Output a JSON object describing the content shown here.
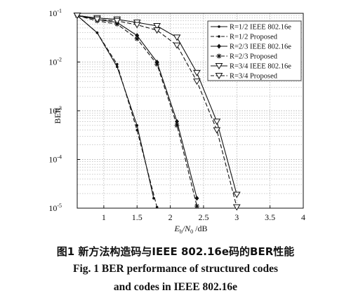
{
  "chart_data": {
    "type": "line",
    "xlabel_main": "E",
    "xlabel_sub": "b",
    "xlabel_over": "/N",
    "xlabel_sub2": "0",
    "xlabel_unit": " /dB",
    "ylabel": "BER",
    "xlim": [
      0.6,
      4.0
    ],
    "ylim_log10": [
      -5,
      -1
    ],
    "yscale": "log",
    "grid": true,
    "legend_position": "top-right",
    "x_ticks": [
      "1",
      "1.5",
      "2",
      "2.5",
      "3",
      "3.5",
      "4"
    ],
    "y_ticks": [
      "10",
      "10",
      "10",
      "10",
      "10"
    ],
    "y_tick_exponents": [
      "-1",
      "-2",
      "-3",
      "-4",
      "-5"
    ],
    "series": [
      {
        "name": "R=1/2  IEEE  802.16e",
        "style": "solid",
        "marker": "dot",
        "x": [
          0.6,
          0.9,
          1.2,
          1.5,
          1.75
        ],
        "y": [
          0.09,
          0.04,
          0.008,
          0.0005,
          1.6e-05
        ]
      },
      {
        "name": "R=1/2  Proposed",
        "style": "dashed",
        "marker": "dot",
        "x": [
          0.6,
          0.9,
          1.2,
          1.5,
          1.8
        ],
        "y": [
          0.09,
          0.04,
          0.009,
          0.0004,
          1.05e-05
        ]
      },
      {
        "name": "R=2/3  IEEE  802.16e",
        "style": "solid",
        "marker": "diamond",
        "x": [
          0.6,
          0.9,
          1.2,
          1.5,
          1.8,
          2.1,
          2.4
        ],
        "y": [
          0.09,
          0.075,
          0.065,
          0.035,
          0.01,
          0.0006,
          1.6e-05
        ]
      },
      {
        "name": "R=2/3  Proposed",
        "style": "dashed",
        "marker": "star",
        "x": [
          0.6,
          0.9,
          1.2,
          1.5,
          1.8,
          2.1,
          2.4
        ],
        "y": [
          0.09,
          0.07,
          0.06,
          0.03,
          0.009,
          0.0005,
          1.1e-05
        ]
      },
      {
        "name": "R=3/4  IEEE  802.16e",
        "style": "solid",
        "marker": "triangle-down",
        "x": [
          0.6,
          0.9,
          1.2,
          1.5,
          1.8,
          2.1,
          2.4,
          2.7,
          3.0
        ],
        "y": [
          0.09,
          0.08,
          0.075,
          0.065,
          0.055,
          0.032,
          0.006,
          0.0006,
          1.9e-05
        ]
      },
      {
        "name": "R=3/4  Proposed",
        "style": "dashed",
        "marker": "triangle-down",
        "x": [
          0.6,
          0.9,
          1.2,
          1.5,
          1.8,
          2.1,
          2.4,
          2.7,
          3.0
        ],
        "y": [
          0.09,
          0.075,
          0.07,
          0.058,
          0.045,
          0.022,
          0.004,
          0.0004,
          1.05e-05
        ]
      }
    ]
  },
  "caption": {
    "cn": "图1  新方法构造码与IEEE 802.16e码的BER性能",
    "en_line1": "Fig. 1  BER performance of structured codes",
    "en_line2": "and codes in IEEE 802.16e"
  }
}
